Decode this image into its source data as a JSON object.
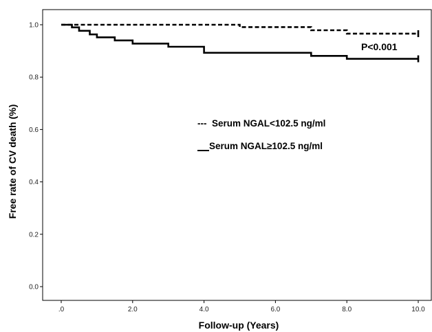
{
  "chart_data": {
    "type": "line",
    "title": "",
    "xlabel": "Follow-up (Years)",
    "ylabel": "Free rate of CV death (%)",
    "xlim": [
      0,
      10
    ],
    "ylim": [
      0,
      1.05
    ],
    "x_ticks": [
      ".0",
      "2.0",
      "4.0",
      "6.0",
      "8.0",
      "10.0"
    ],
    "x_tick_values": [
      0,
      2,
      4,
      6,
      8,
      10
    ],
    "y_ticks": [
      "0.0",
      "0.2",
      "0.4",
      "0.6",
      "0.8",
      "1.0"
    ],
    "y_tick_values": [
      0,
      0.2,
      0.4,
      0.6,
      0.8,
      1.0
    ],
    "grid": false,
    "series": [
      {
        "name": "Serum NGAL<102.5 ng/ml",
        "style": "dashed",
        "color": "#000000",
        "steps": [
          [
            0,
            1.0
          ],
          [
            5.0,
            0.991
          ],
          [
            7.0,
            0.979
          ],
          [
            8.0,
            0.966
          ],
          [
            10.0,
            0.966
          ]
        ]
      },
      {
        "name": "Serum NGAL≥102.5 ng/ml",
        "style": "solid",
        "color": "#000000",
        "steps": [
          [
            0,
            1.0
          ],
          [
            0.3,
            0.99
          ],
          [
            0.5,
            0.977
          ],
          [
            0.8,
            0.963
          ],
          [
            1.0,
            0.952
          ],
          [
            1.5,
            0.94
          ],
          [
            2.0,
            0.928
          ],
          [
            3.0,
            0.916
          ],
          [
            4.0,
            0.893
          ],
          [
            7.0,
            0.881
          ],
          [
            8.0,
            0.87
          ],
          [
            10.0,
            0.87
          ]
        ]
      }
    ],
    "annotations": {
      "legend_dashed_prefix": "---",
      "legend_dashed_label": "Serum NGAL<102.5 ng/ml",
      "legend_solid_label": "Serum NGAL≥102.5 ng/ml",
      "p_value": "P<0.001"
    }
  }
}
